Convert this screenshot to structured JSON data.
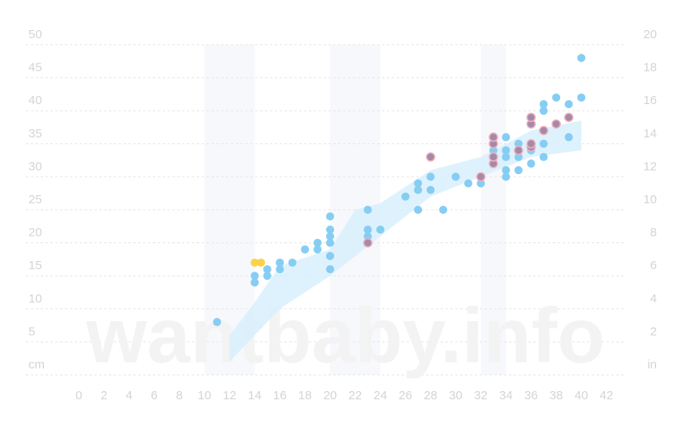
{
  "chart_data": {
    "type": "scatter",
    "watermark": "wantbaby.info",
    "xlim": [
      0,
      42
    ],
    "xticks": [
      0,
      2,
      4,
      6,
      8,
      10,
      12,
      14,
      16,
      18,
      20,
      22,
      24,
      26,
      28,
      30,
      32,
      34,
      36,
      38,
      40,
      42
    ],
    "ylim": [
      0,
      50
    ],
    "yticks": [
      {
        "value": 0,
        "label": "cm"
      },
      5,
      10,
      15,
      20,
      25,
      30,
      35,
      40,
      45,
      50
    ],
    "y2lim": [
      0,
      20
    ],
    "y2ticks": [
      {
        "value": 0,
        "label": "in"
      },
      2,
      4,
      6,
      8,
      10,
      12,
      14,
      16,
      18,
      20
    ],
    "grid": true,
    "highlight_bands": [
      [
        10,
        14
      ],
      [
        20,
        24
      ],
      [
        32,
        34
      ]
    ],
    "band": {
      "color": "#d6effc",
      "x": [
        12,
        14,
        16,
        20,
        22,
        24,
        28,
        32,
        36,
        40
      ],
      "lower": [
        2,
        6,
        10,
        15,
        18,
        21,
        27,
        30,
        33,
        34
      ],
      "upper": [
        6,
        11,
        16.5,
        19,
        25,
        26,
        31,
        33,
        37,
        38.5
      ]
    },
    "series": [
      {
        "color": "#86cdf3",
        "x": [
          11,
          14,
          14,
          15,
          15,
          16,
          16,
          17,
          18,
          19,
          19,
          20,
          20,
          20,
          20,
          20,
          20,
          23,
          23,
          23,
          24,
          26,
          27,
          27,
          27,
          28,
          28,
          29,
          30,
          31,
          32,
          33,
          33,
          33,
          34,
          34,
          34,
          34,
          34,
          35,
          35,
          35,
          36,
          36,
          36,
          37,
          37,
          37,
          37,
          38,
          39,
          39,
          40,
          40
        ],
        "values": [
          8,
          14,
          15,
          15,
          16,
          17,
          16,
          17,
          19,
          19,
          20,
          16,
          18,
          20,
          21,
          22,
          24,
          21,
          22,
          25,
          22,
          27,
          25,
          28,
          29,
          28,
          30,
          25,
          30,
          29,
          29,
          32,
          33,
          34,
          30,
          31,
          33,
          34,
          36,
          31,
          33,
          35,
          32,
          34,
          35,
          33,
          35,
          40,
          41,
          42,
          36,
          41,
          42,
          48
        ]
      },
      {
        "color": "#fcd24a",
        "x": [
          14,
          14.5
        ],
        "values": [
          17,
          17
        ]
      },
      {
        "color": "#a58aa8",
        "stroke": "#f3aebb",
        "x": [
          23,
          28,
          32,
          33,
          33,
          33,
          33,
          35,
          36,
          36,
          36,
          36,
          37,
          38,
          39
        ],
        "values": [
          20,
          33,
          30,
          32,
          33,
          35,
          36,
          34,
          34.5,
          35,
          38,
          39,
          37,
          38,
          39
        ]
      }
    ]
  }
}
